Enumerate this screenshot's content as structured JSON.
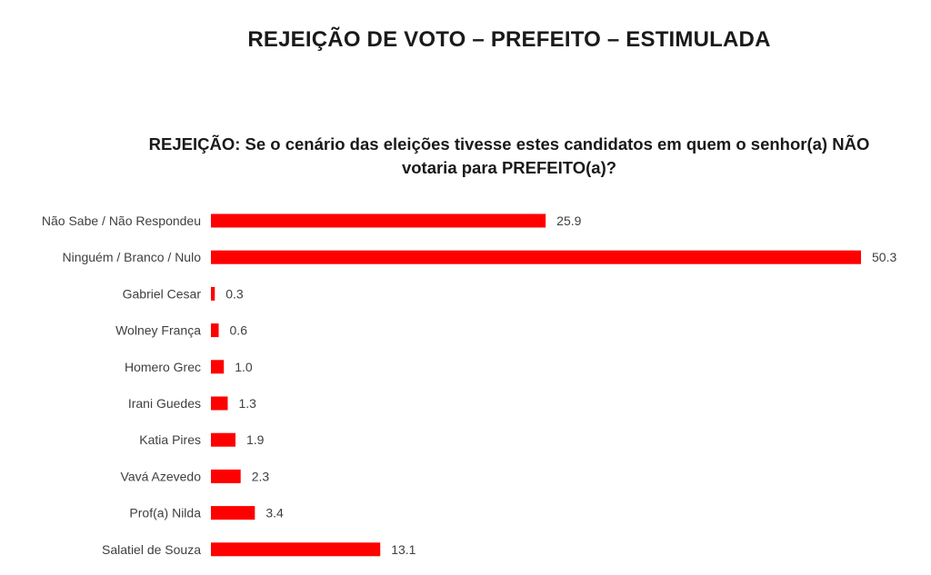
{
  "header": {
    "title": "REJEIÇÃO DE VOTO – PREFEITO – ESTIMULADA"
  },
  "chart_data": {
    "type": "bar",
    "orientation": "horizontal",
    "title_line1": "REJEIÇÃO: Se o cenário das eleições tivesse estes candidatos em quem o senhor(a) NÃO",
    "title_line2": "votaria para PREFEITO(a)?",
    "categories": [
      "Não Sabe / Não Respondeu",
      "Ninguém / Branco / Nulo",
      "Gabriel Cesar",
      "Wolney França",
      "Homero Grec",
      "Irani Guedes",
      "Katia Pires",
      "Vavá Azevedo",
      "Prof(a) Nilda",
      "Salatiel de Souza"
    ],
    "values": [
      25.9,
      50.3,
      0.3,
      0.6,
      1.0,
      1.3,
      1.9,
      2.3,
      3.4,
      13.1
    ],
    "value_labels": [
      "25.9",
      "50.3",
      "0.3",
      "0.6",
      "1.0",
      "1.3",
      "1.9",
      "2.3",
      "3.4",
      "13.1"
    ],
    "bar_color": "#ff0000",
    "xlim": [
      0,
      50.3
    ],
    "grid": false,
    "legend": "none"
  }
}
